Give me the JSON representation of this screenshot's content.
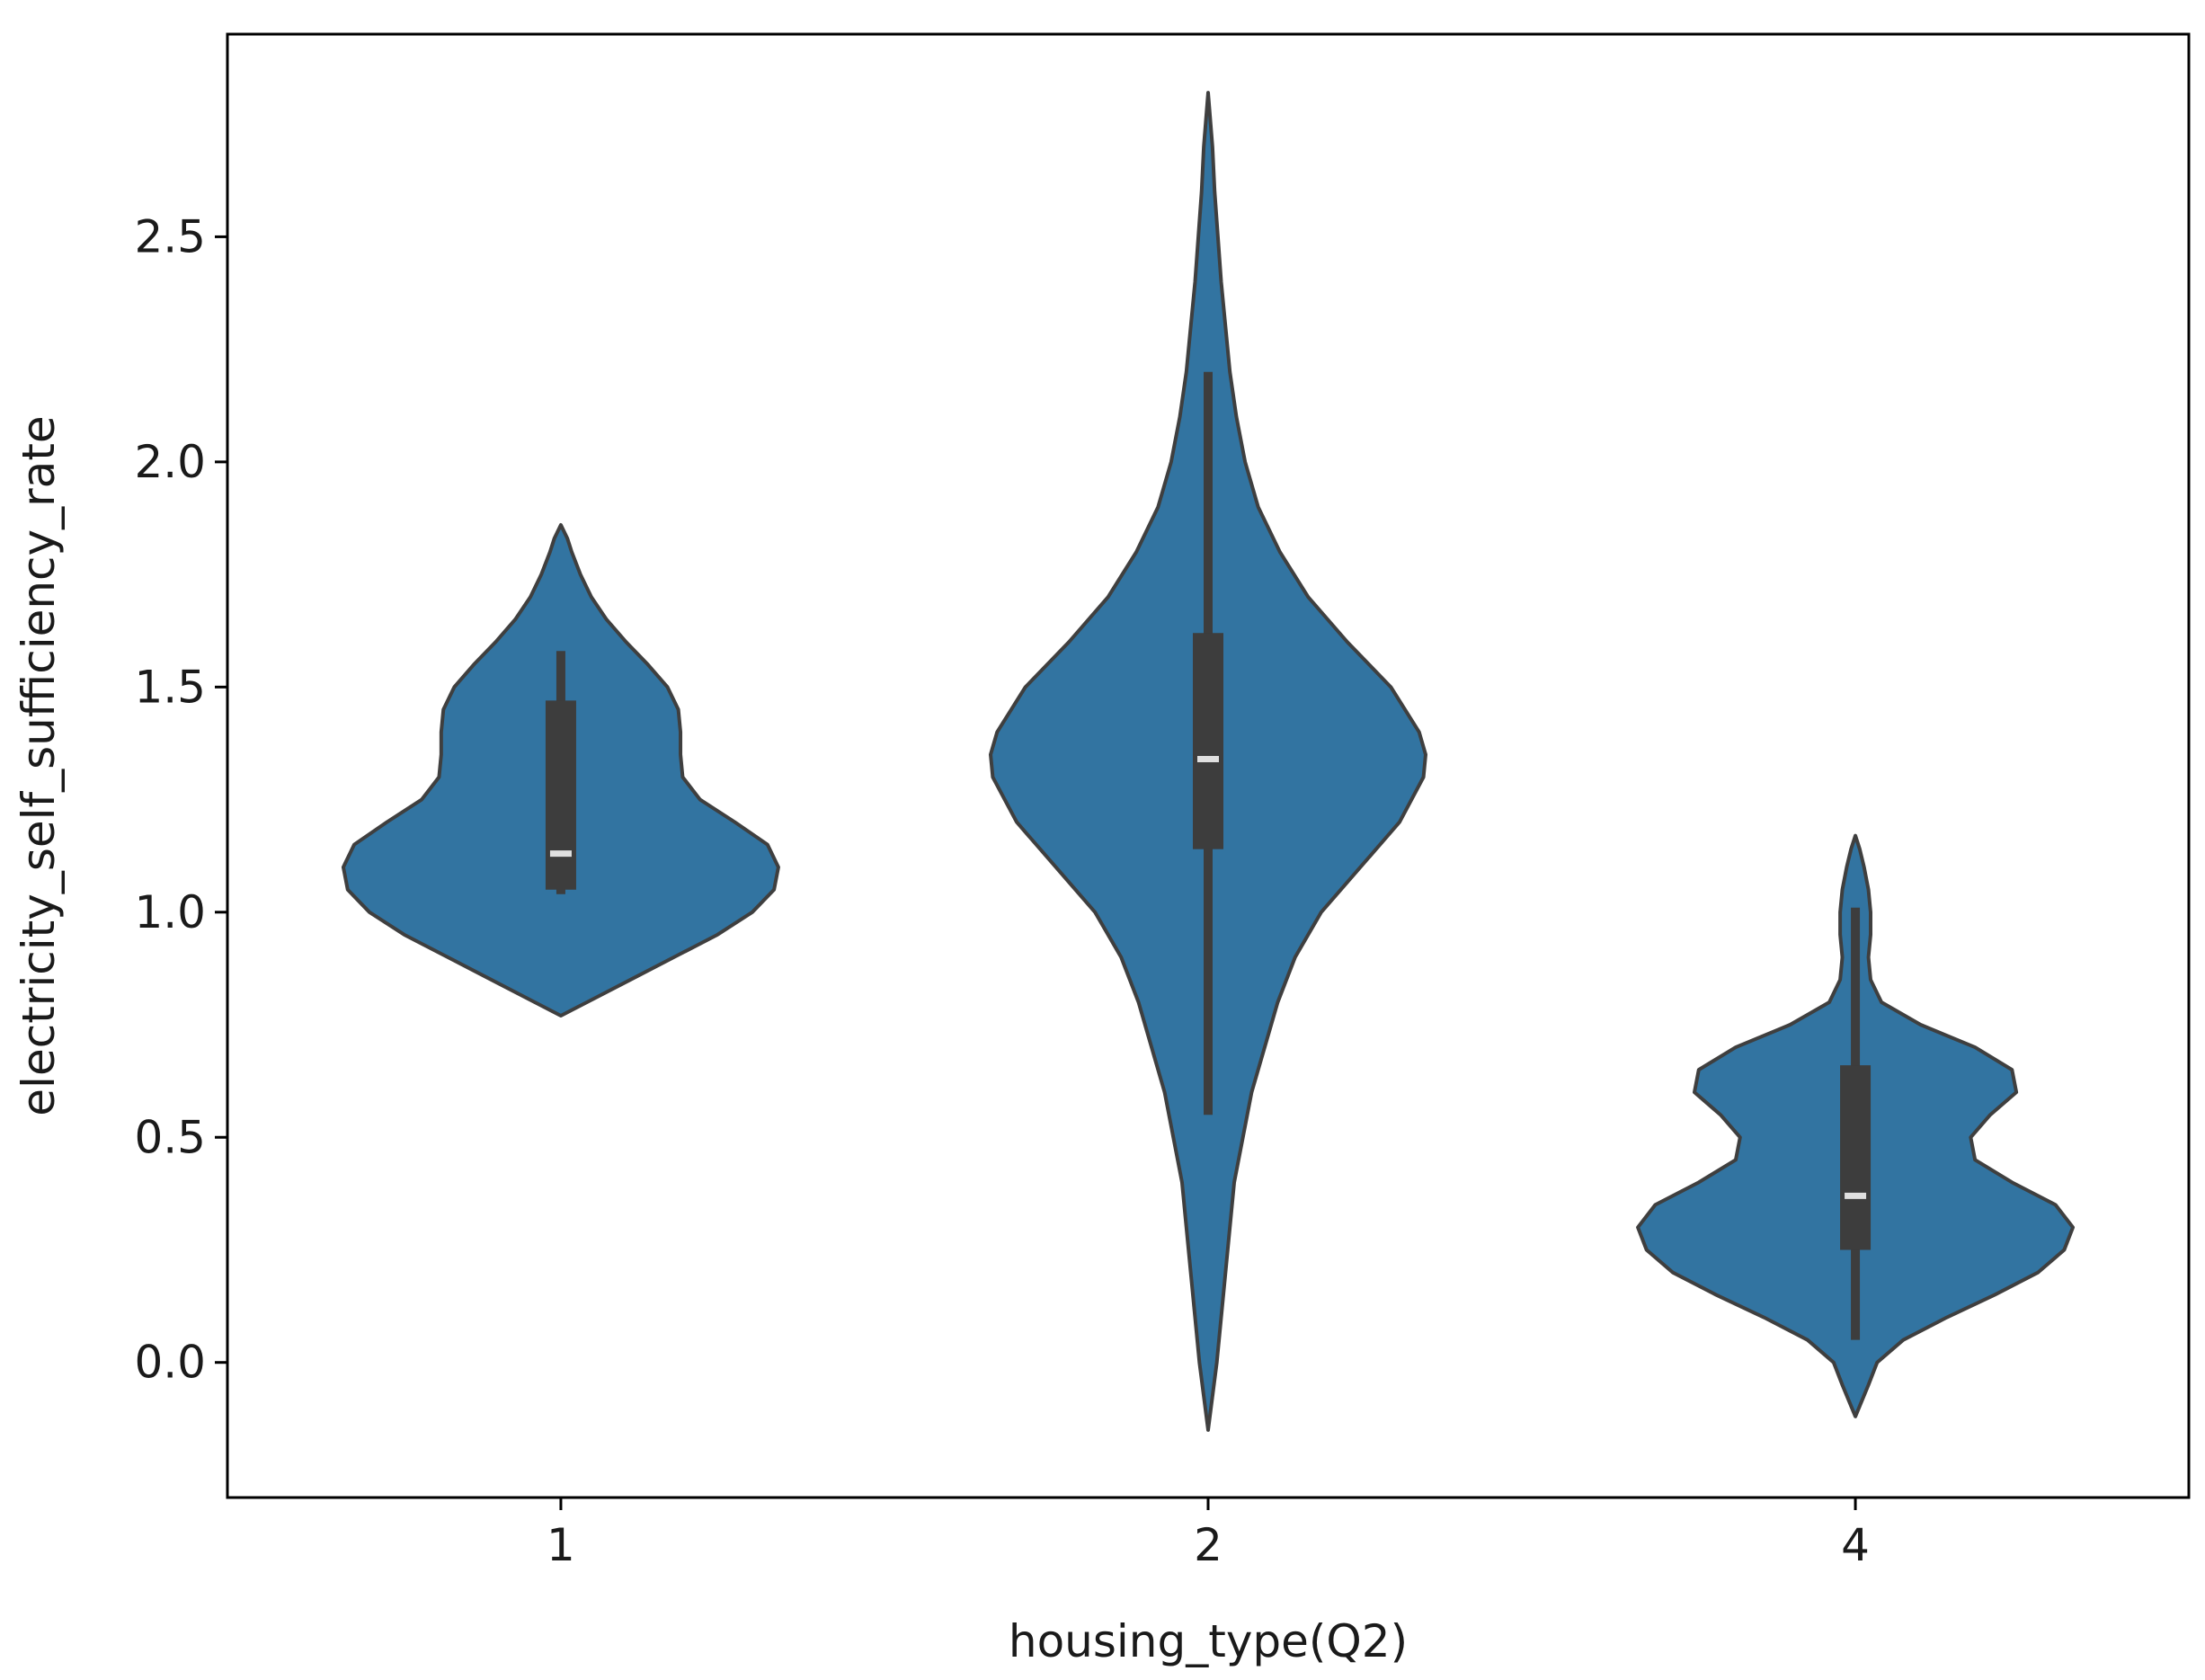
{
  "chart_data": {
    "type": "violin",
    "title": "",
    "xlabel": "housing_type(Q2)",
    "ylabel": "electricity_self_sufficiency_rate",
    "categories": [
      "1",
      "2",
      "4"
    ],
    "ylim": [
      -0.3,
      2.95
    ],
    "yticks": [
      0.0,
      0.5,
      1.0,
      1.5,
      2.0,
      2.5
    ],
    "ytick_labels": [
      "0.0",
      "0.5",
      "1.0",
      "1.5",
      "2.0",
      "2.5"
    ],
    "grid": false,
    "colors": {
      "violin_fill": "#3274a1",
      "violin_edge": "#3f3f3f",
      "box": "#3d3d3d",
      "median": "#e0e0e0"
    },
    "series": [
      {
        "category": "1",
        "kde_range": [
          0.77,
          1.86
        ],
        "density_profile": [
          [
            0.77,
            0.0
          ],
          [
            0.8,
            0.12
          ],
          [
            0.85,
            0.32
          ],
          [
            0.9,
            0.52
          ],
          [
            0.95,
            0.72
          ],
          [
            1.0,
            0.88
          ],
          [
            1.05,
            0.98
          ],
          [
            1.1,
            1.0
          ],
          [
            1.15,
            0.95
          ],
          [
            1.2,
            0.8
          ],
          [
            1.25,
            0.64
          ],
          [
            1.3,
            0.56
          ],
          [
            1.35,
            0.55
          ],
          [
            1.4,
            0.55
          ],
          [
            1.45,
            0.54
          ],
          [
            1.5,
            0.49
          ],
          [
            1.55,
            0.4
          ],
          [
            1.6,
            0.3
          ],
          [
            1.65,
            0.21
          ],
          [
            1.7,
            0.14
          ],
          [
            1.75,
            0.09
          ],
          [
            1.8,
            0.05
          ],
          [
            1.83,
            0.03
          ],
          [
            1.86,
            0.0
          ]
        ],
        "whisker_low": 1.04,
        "q1": 1.05,
        "median": 1.13,
        "q3": 1.47,
        "whisker_high": 1.58
      },
      {
        "category": "2",
        "kde_range": [
          -0.15,
          2.82
        ],
        "density_profile": [
          [
            -0.15,
            0.0
          ],
          [
            0.0,
            0.04
          ],
          [
            0.2,
            0.08
          ],
          [
            0.4,
            0.12
          ],
          [
            0.6,
            0.2
          ],
          [
            0.8,
            0.32
          ],
          [
            0.9,
            0.4
          ],
          [
            1.0,
            0.52
          ],
          [
            1.1,
            0.7
          ],
          [
            1.2,
            0.88
          ],
          [
            1.3,
            0.99
          ],
          [
            1.35,
            1.0
          ],
          [
            1.4,
            0.97
          ],
          [
            1.5,
            0.84
          ],
          [
            1.6,
            0.64
          ],
          [
            1.7,
            0.46
          ],
          [
            1.8,
            0.33
          ],
          [
            1.9,
            0.23
          ],
          [
            2.0,
            0.17
          ],
          [
            2.1,
            0.13
          ],
          [
            2.2,
            0.1
          ],
          [
            2.3,
            0.08
          ],
          [
            2.4,
            0.06
          ],
          [
            2.5,
            0.045
          ],
          [
            2.6,
            0.03
          ],
          [
            2.7,
            0.02
          ],
          [
            2.82,
            0.0
          ]
        ],
        "whisker_low": 0.55,
        "q1": 1.14,
        "median": 1.34,
        "q3": 1.62,
        "whisker_high": 2.2
      },
      {
        "category": "4",
        "kde_range": [
          -0.12,
          1.17
        ],
        "density_profile": [
          [
            -0.12,
            0.0
          ],
          [
            -0.05,
            0.06
          ],
          [
            0.0,
            0.1
          ],
          [
            0.05,
            0.22
          ],
          [
            0.1,
            0.42
          ],
          [
            0.15,
            0.64
          ],
          [
            0.2,
            0.84
          ],
          [
            0.25,
            0.96
          ],
          [
            0.3,
            1.0
          ],
          [
            0.35,
            0.92
          ],
          [
            0.4,
            0.72
          ],
          [
            0.45,
            0.55
          ],
          [
            0.5,
            0.53
          ],
          [
            0.55,
            0.62
          ],
          [
            0.6,
            0.74
          ],
          [
            0.65,
            0.72
          ],
          [
            0.7,
            0.55
          ],
          [
            0.75,
            0.3
          ],
          [
            0.8,
            0.12
          ],
          [
            0.85,
            0.07
          ],
          [
            0.9,
            0.06
          ],
          [
            0.95,
            0.07
          ],
          [
            1.0,
            0.07
          ],
          [
            1.05,
            0.06
          ],
          [
            1.1,
            0.04
          ],
          [
            1.14,
            0.02
          ],
          [
            1.17,
            0.0
          ]
        ],
        "whisker_low": 0.05,
        "q1": 0.25,
        "median": 0.37,
        "q3": 0.66,
        "whisker_high": 1.01
      }
    ]
  }
}
